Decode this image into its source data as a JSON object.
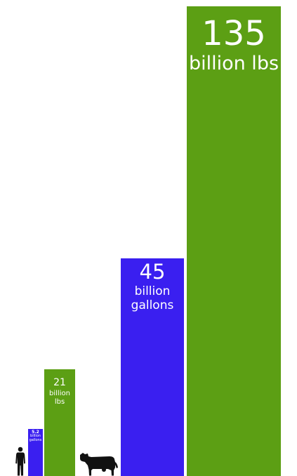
{
  "chart_data": {
    "type": "bar",
    "title": "",
    "xlabel": "",
    "ylabel": "",
    "ylim": [
      0,
      135
    ],
    "grid": false,
    "categories": [
      "human water",
      "human waste",
      "cow water",
      "cow waste"
    ],
    "values": [
      5.2,
      21,
      45,
      135
    ],
    "bar_colors": [
      "#3a1ff0",
      "#5c9f14",
      "#3a1ff0",
      "#5c9f14"
    ],
    "data_labels": [
      {
        "number": "5.2",
        "unit": "billion gallons"
      },
      {
        "number": "21",
        "unit": "billion lbs"
      },
      {
        "number": "45",
        "unit": "billion gallons"
      },
      {
        "number": "135",
        "unit": "billion lbs"
      }
    ]
  },
  "icons": {
    "human": "human-silhouette-icon",
    "cow": "cow-silhouette-icon"
  },
  "colors": {
    "blue": "#3a1ff0",
    "green": "#5c9f14",
    "silhouette": "#111111"
  }
}
